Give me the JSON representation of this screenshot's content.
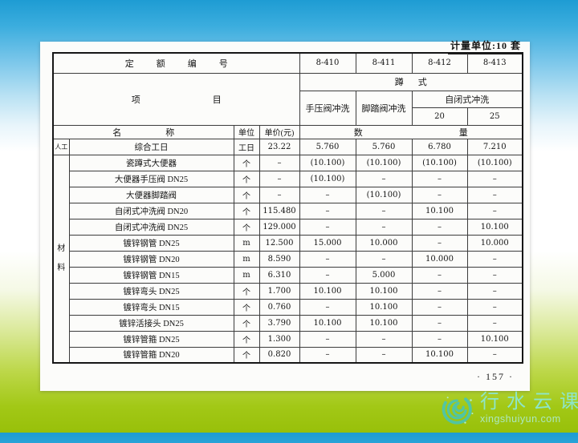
{
  "meta": {
    "unit_note": "计量单位:10 套",
    "page_number": "· 157 ·"
  },
  "table": {
    "quota_header": "定额编号",
    "codes": [
      "8-410",
      "8-411",
      "8-412",
      "8-413"
    ],
    "item_header": "项目",
    "type_header": "蹲式",
    "flush_types": [
      "手压阀冲洗",
      "脚踏阀冲洗",
      "自闭式冲洗"
    ],
    "sizes": [
      "20",
      "25"
    ],
    "name_header": "名称",
    "unit_header": "单位",
    "price_header": "单价(元)",
    "qty_header": "数量",
    "material_chars": [
      "材",
      "料"
    ],
    "rows": [
      {
        "cat": "人工",
        "name": "综合工日",
        "unit": "工日",
        "price": "23.22",
        "v": [
          "5.760",
          "5.760",
          "6.780",
          "7.210"
        ]
      },
      {
        "name": "瓷蹲式大便器",
        "unit": "个",
        "price": "–",
        "v": [
          "(10.100)",
          "(10.100)",
          "(10.100)",
          "(10.100)"
        ]
      },
      {
        "name": "大便器手压阀 DN25",
        "unit": "个",
        "price": "–",
        "v": [
          "(10.100)",
          "–",
          "–",
          "–"
        ]
      },
      {
        "name": "大便器脚踏阀",
        "unit": "个",
        "price": "–",
        "v": [
          "–",
          "(10.100)",
          "–",
          "–"
        ]
      },
      {
        "name": "自闭式冲洗阀 DN20",
        "unit": "个",
        "price": "115.480",
        "v": [
          "–",
          "–",
          "10.100",
          "–"
        ]
      },
      {
        "name": "自闭式冲洗阀 DN25",
        "unit": "个",
        "price": "129.000",
        "v": [
          "–",
          "–",
          "–",
          "10.100"
        ]
      },
      {
        "name": "镀锌钢管 DN25",
        "unit": "m",
        "price": "12.500",
        "v": [
          "15.000",
          "10.000",
          "–",
          "10.000"
        ]
      },
      {
        "name": "镀锌钢管 DN20",
        "unit": "m",
        "price": "8.590",
        "v": [
          "–",
          "–",
          "10.000",
          "–"
        ]
      },
      {
        "name": "镀锌钢管 DN15",
        "unit": "m",
        "price": "6.310",
        "v": [
          "–",
          "5.000",
          "–",
          "–"
        ]
      },
      {
        "name": "镀锌弯头 DN25",
        "unit": "个",
        "price": "1.700",
        "v": [
          "10.100",
          "10.100",
          "–",
          "–"
        ]
      },
      {
        "name": "镀锌弯头 DN15",
        "unit": "个",
        "price": "0.760",
        "v": [
          "–",
          "10.100",
          "–",
          "–"
        ]
      },
      {
        "name": "镀锌活接头 DN25",
        "unit": "个",
        "price": "3.790",
        "v": [
          "10.100",
          "10.100",
          "–",
          "–"
        ]
      },
      {
        "name": "镀锌管箍 DN25",
        "unit": "个",
        "price": "1.300",
        "v": [
          "–",
          "–",
          "–",
          "10.100"
        ]
      },
      {
        "name": "镀锌管箍 DN20",
        "unit": "个",
        "price": "0.820",
        "v": [
          "–",
          "–",
          "10.100",
          "–"
        ]
      }
    ]
  },
  "watermark": {
    "brand": "行水云课",
    "domain": "xingshuiyun.com"
  },
  "colors": {
    "top_blue": "#2ba4d9",
    "bottom_green": "#9ec60e",
    "watermark_teal": "#49c4b3"
  }
}
